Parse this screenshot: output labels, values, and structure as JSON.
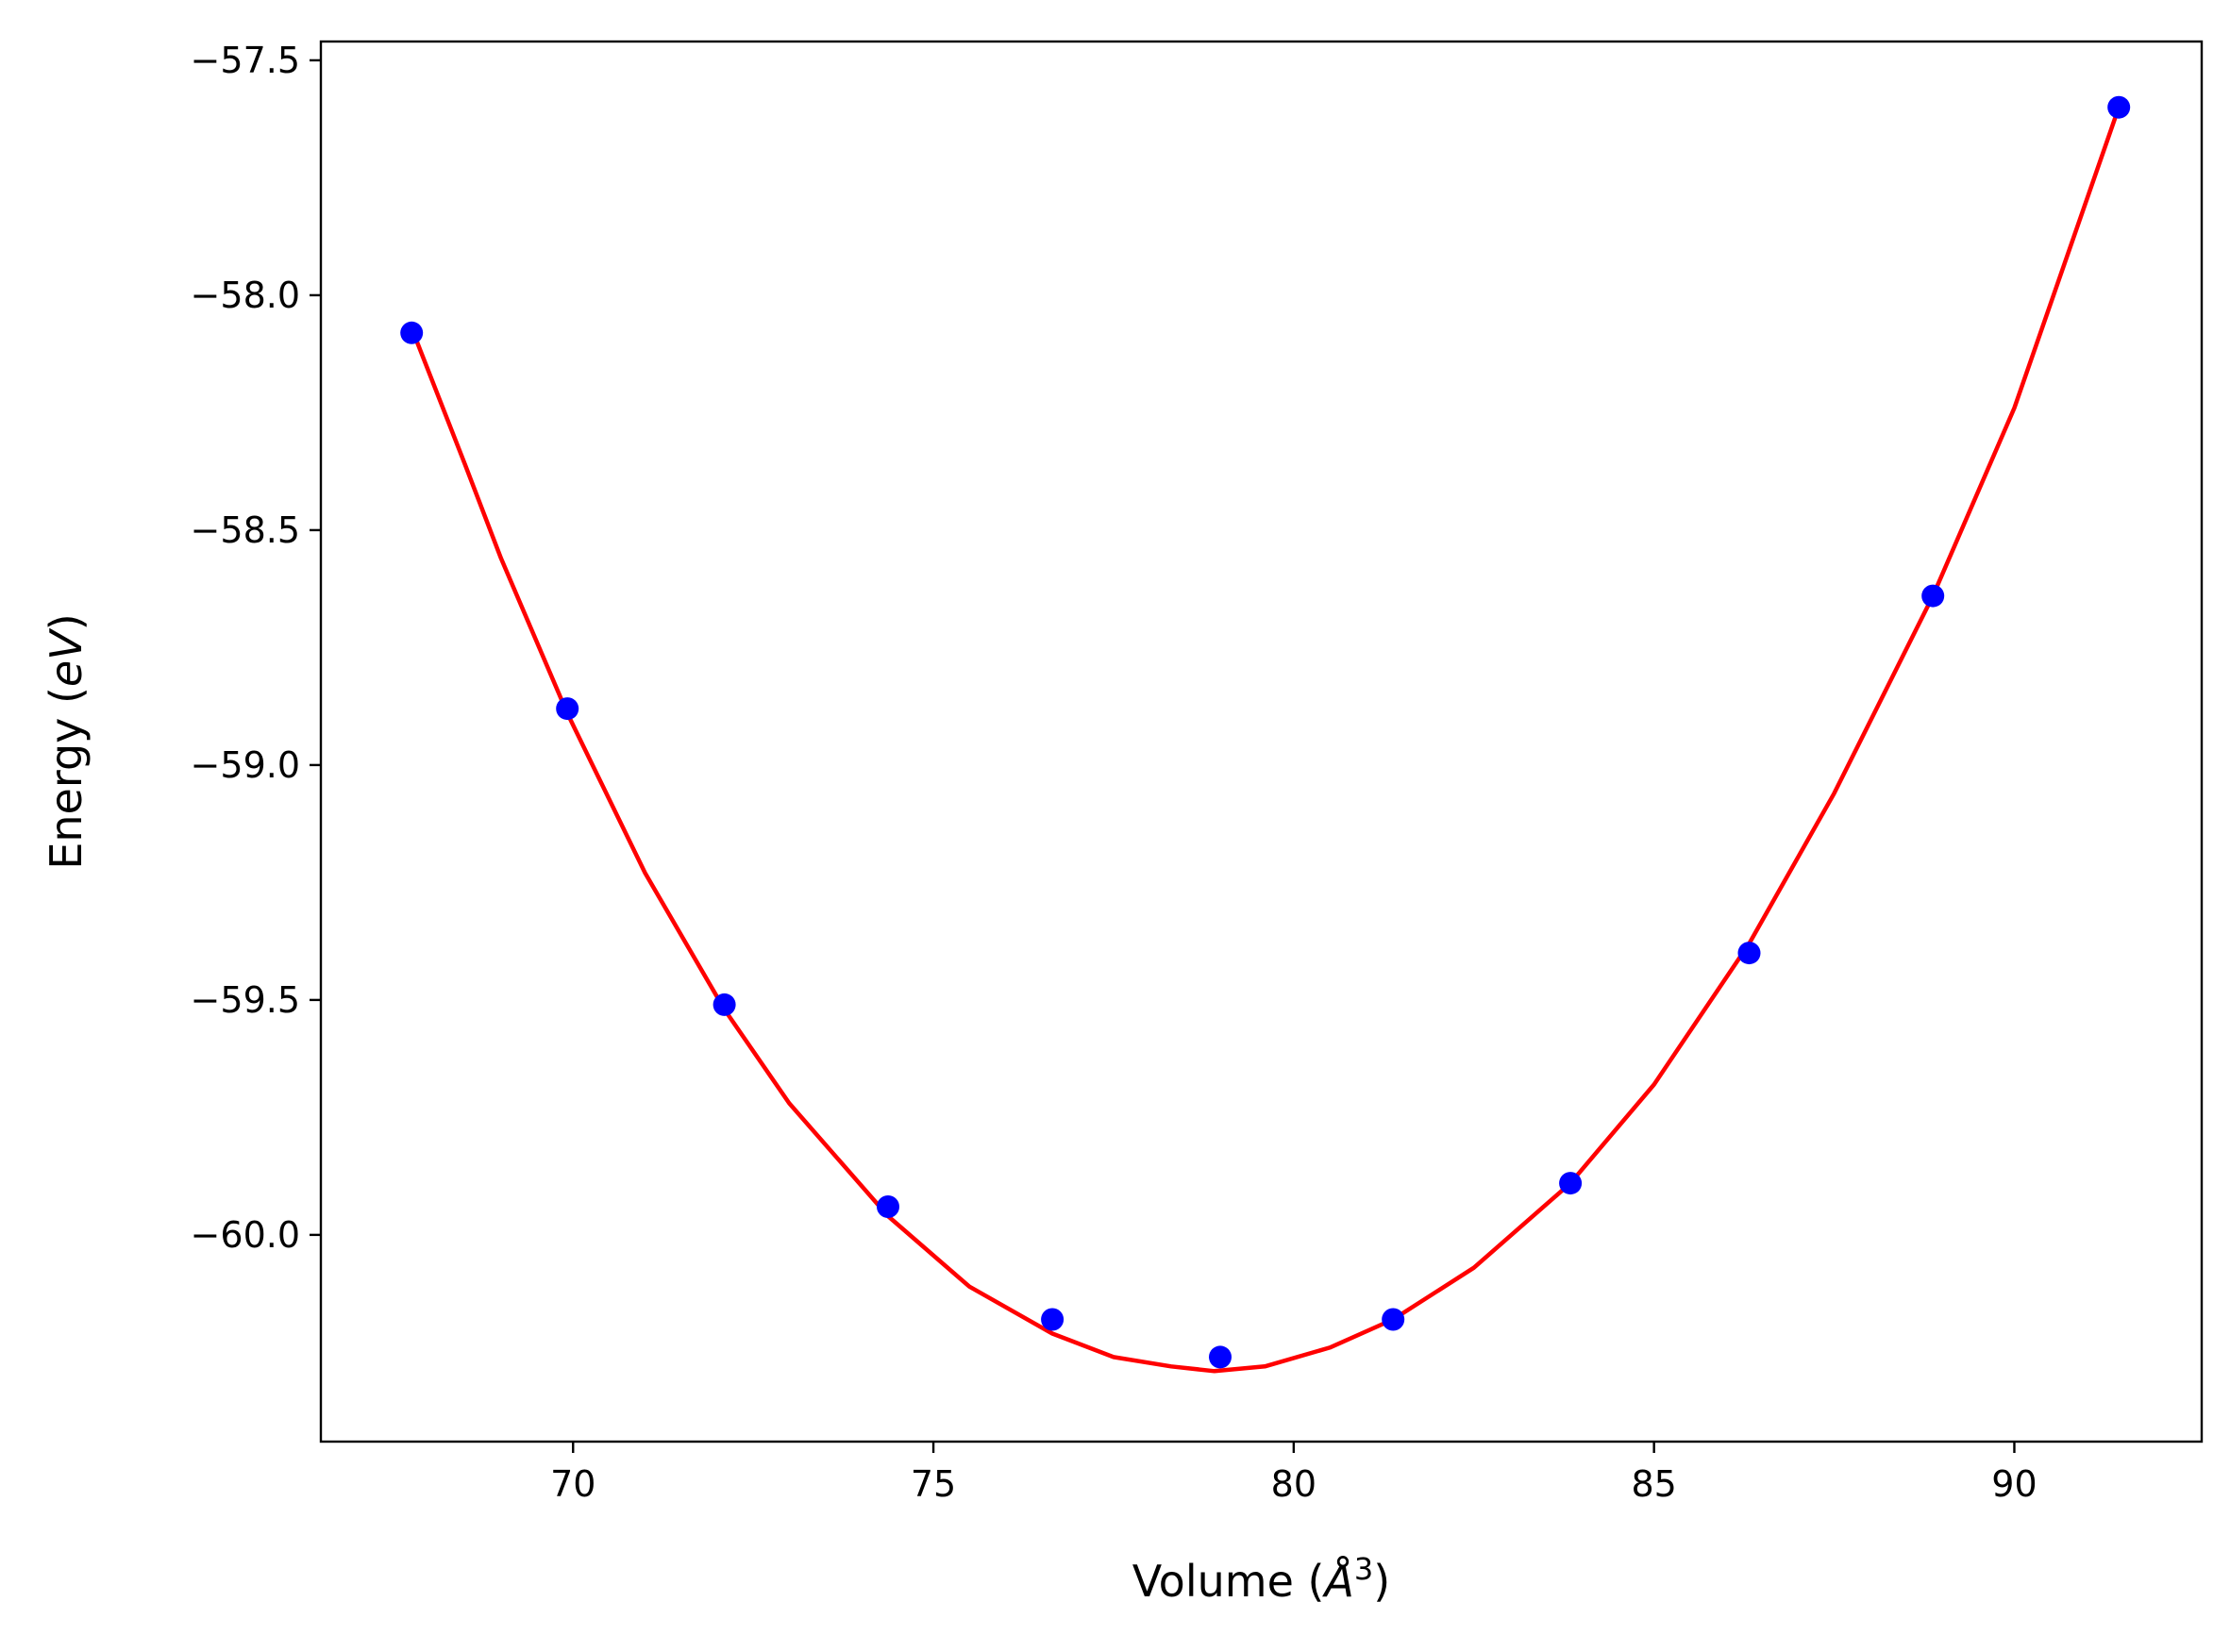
{
  "chart_data": {
    "type": "scatter",
    "xlabel": "Volume (Å3)",
    "xlabel_parts": {
      "prefix": "Volume (",
      "italic": "Å",
      "superscript": "3",
      "suffix": ")"
    },
    "ylabel": "Energy (eV)",
    "ylabel_parts": {
      "prefix": "Energy (",
      "italic": "eV",
      "suffix": ")"
    },
    "xlim": [
      66.5,
      92.6
    ],
    "ylim": [
      -60.44,
      -57.46
    ],
    "xticks": [
      70,
      75,
      80,
      85,
      90
    ],
    "xtick_labels": [
      "70",
      "75",
      "80",
      "85",
      "90"
    ],
    "yticks": [
      -57.5,
      -58.0,
      -58.5,
      -59.0,
      -59.5,
      -60.0
    ],
    "ytick_labels": [
      "−57.5",
      "−58.0",
      "−58.5",
      "−59.0",
      "−59.5",
      "−60.0"
    ],
    "grid": false,
    "legend": null,
    "series": [
      {
        "kind": "points",
        "color": "#0000ff",
        "x": [
          67.76,
          69.92,
          72.1,
          74.37,
          76.65,
          78.98,
          81.38,
          83.84,
          86.32,
          88.87,
          91.45
        ],
        "y": [
          -58.08,
          -58.88,
          -59.51,
          -59.94,
          -60.18,
          -60.26,
          -60.18,
          -59.89,
          -59.4,
          -58.64,
          -57.6
        ]
      },
      {
        "kind": "fit-curve",
        "color": "#ff0000",
        "x": [
          67.76,
          68.5,
          69.0,
          69.92,
          71.0,
          72.1,
          73.0,
          74.37,
          75.5,
          76.65,
          77.5,
          78.3,
          78.9,
          79.6,
          80.5,
          81.38,
          82.5,
          83.84,
          85.0,
          86.32,
          87.5,
          88.87,
          90.0,
          91.45
        ],
        "y": [
          -58.07,
          -58.36,
          -58.56,
          -58.89,
          -59.23,
          -59.52,
          -59.72,
          -59.96,
          -60.11,
          -60.21,
          -60.26,
          -60.28,
          -60.29,
          -60.28,
          -60.24,
          -60.18,
          -60.07,
          -59.89,
          -59.68,
          -59.38,
          -59.06,
          -58.64,
          -58.24,
          -57.6
        ]
      }
    ]
  }
}
